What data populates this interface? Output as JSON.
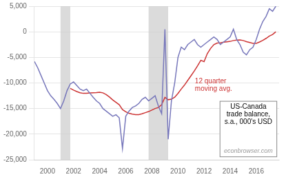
{
  "chart_data": {
    "type": "line",
    "x": [
      1999.0,
      1999.25,
      1999.5,
      1999.75,
      2000.0,
      2000.25,
      2000.5,
      2000.75,
      2001.0,
      2001.25,
      2001.5,
      2001.75,
      2002.0,
      2002.25,
      2002.5,
      2002.75,
      2003.0,
      2003.25,
      2003.5,
      2003.75,
      2004.0,
      2004.25,
      2004.5,
      2004.75,
      2005.0,
      2005.25,
      2005.5,
      2005.75,
      2006.0,
      2006.25,
      2006.5,
      2006.75,
      2007.0,
      2007.25,
      2007.5,
      2007.75,
      2008.0,
      2008.25,
      2008.5,
      2008.75,
      2009.0,
      2009.25,
      2009.5,
      2009.75,
      2010.0,
      2010.25,
      2010.5,
      2010.75,
      2011.0,
      2011.25,
      2011.5,
      2011.75,
      2012.0,
      2012.25,
      2012.5,
      2012.75,
      2013.0,
      2013.25,
      2013.5,
      2013.75,
      2014.0,
      2014.25,
      2014.5,
      2014.75,
      2015.0,
      2015.25,
      2015.5,
      2015.75,
      2016.0,
      2016.25,
      2016.5,
      2016.75,
      2017.0,
      2017.25,
      2017.5
    ],
    "series": [
      {
        "color": "#7777bb",
        "values": [
          -5800,
          -7000,
          -8500,
          -10000,
          -11500,
          -12500,
          -13200,
          -14000,
          -15000,
          -13500,
          -11500,
          -10200,
          -9800,
          -10500,
          -11200,
          -11500,
          -11200,
          -12000,
          -12800,
          -13500,
          -14000,
          -15000,
          -15500,
          -16000,
          -16500,
          -16200,
          -16800,
          -22800,
          -16500,
          -15500,
          -14800,
          -14500,
          -14000,
          -13200,
          -12800,
          -13500,
          -13000,
          -12500,
          -14500,
          -16000,
          500,
          -21000,
          -13500,
          -10000,
          -5000,
          -3000,
          -3500,
          -2500,
          -2000,
          -1500,
          -2500,
          -3000,
          -2500,
          -2000,
          -1500,
          -1000,
          -1500,
          -2500,
          -2000,
          -1500,
          -1000,
          500,
          -1500,
          -2500,
          -4000,
          -4500,
          -3500,
          -3000,
          -1500,
          500,
          2000,
          3000,
          4500,
          4000,
          5000
        ]
      },
      {
        "color": "#cc3333",
        "values": [
          null,
          null,
          null,
          null,
          null,
          null,
          null,
          null,
          null,
          null,
          null,
          -11058.33,
          -11391.67,
          -11683.33,
          -11908.33,
          -12033.33,
          -12008.33,
          -11966.67,
          -11933.33,
          -11891.67,
          -11808.33,
          -11933.33,
          -12266.67,
          -12750,
          -13308.33,
          -13783.33,
          -14250,
          -15191.67,
          -15633.33,
          -15925,
          -16091.67,
          -16175,
          -16175,
          -16025,
          -15800,
          -15591.67,
          -15300,
          -14991.67,
          -14800,
          -14233.33,
          -12816.67,
          -13275,
          -13166.67,
          -12791.67,
          -12041.67,
          -11191.67,
          -10416.67,
          -9500,
          -8583.33,
          -7666.67,
          -6666.67,
          -5583.33,
          -5833.33,
          -4250,
          -3250,
          -2500,
          -2208.33,
          -2166.67,
          -2041.67,
          -1958.33,
          -1875,
          -1708.33,
          -1625,
          -1583.33,
          -1708.33,
          -1916.67,
          -2083.33,
          -2250,
          -2250,
          -2000,
          -1666.67,
          -1291.67,
          -833.33,
          -541.67,
          0
        ]
      }
    ],
    "xlim": [
      1999.0,
      2017.75
    ],
    "xticks": [
      2000,
      2002,
      2004,
      2006,
      2008,
      2010,
      2012,
      2014,
      2016
    ],
    "ylim": [
      -25000,
      5000
    ],
    "yticks": [
      {
        "value": 5000,
        "label": "5,000"
      },
      0,
      {
        "value": -5000,
        "label": "-5,000"
      },
      {
        "value": -10000,
        "label": "-10,000"
      },
      {
        "value": -15000,
        "label": "-15,000"
      },
      {
        "value": -20000,
        "label": "-20,000"
      },
      {
        "value": -25000,
        "label": "-25,000"
      }
    ],
    "grid": true,
    "bands": [
      [
        2001.0,
        2001.75
      ],
      [
        2007.75,
        2009.25
      ]
    ],
    "band_color": "#cccccc",
    "annotations": [
      {
        "text": "12 quarter\nmoving avg.",
        "color": "#cc3333"
      },
      {
        "text": "US-Canada\ntrade balance,\ns.a., 000's USD"
      },
      {
        "text": "econbrowser.com",
        "color": "#999999"
      }
    ]
  }
}
